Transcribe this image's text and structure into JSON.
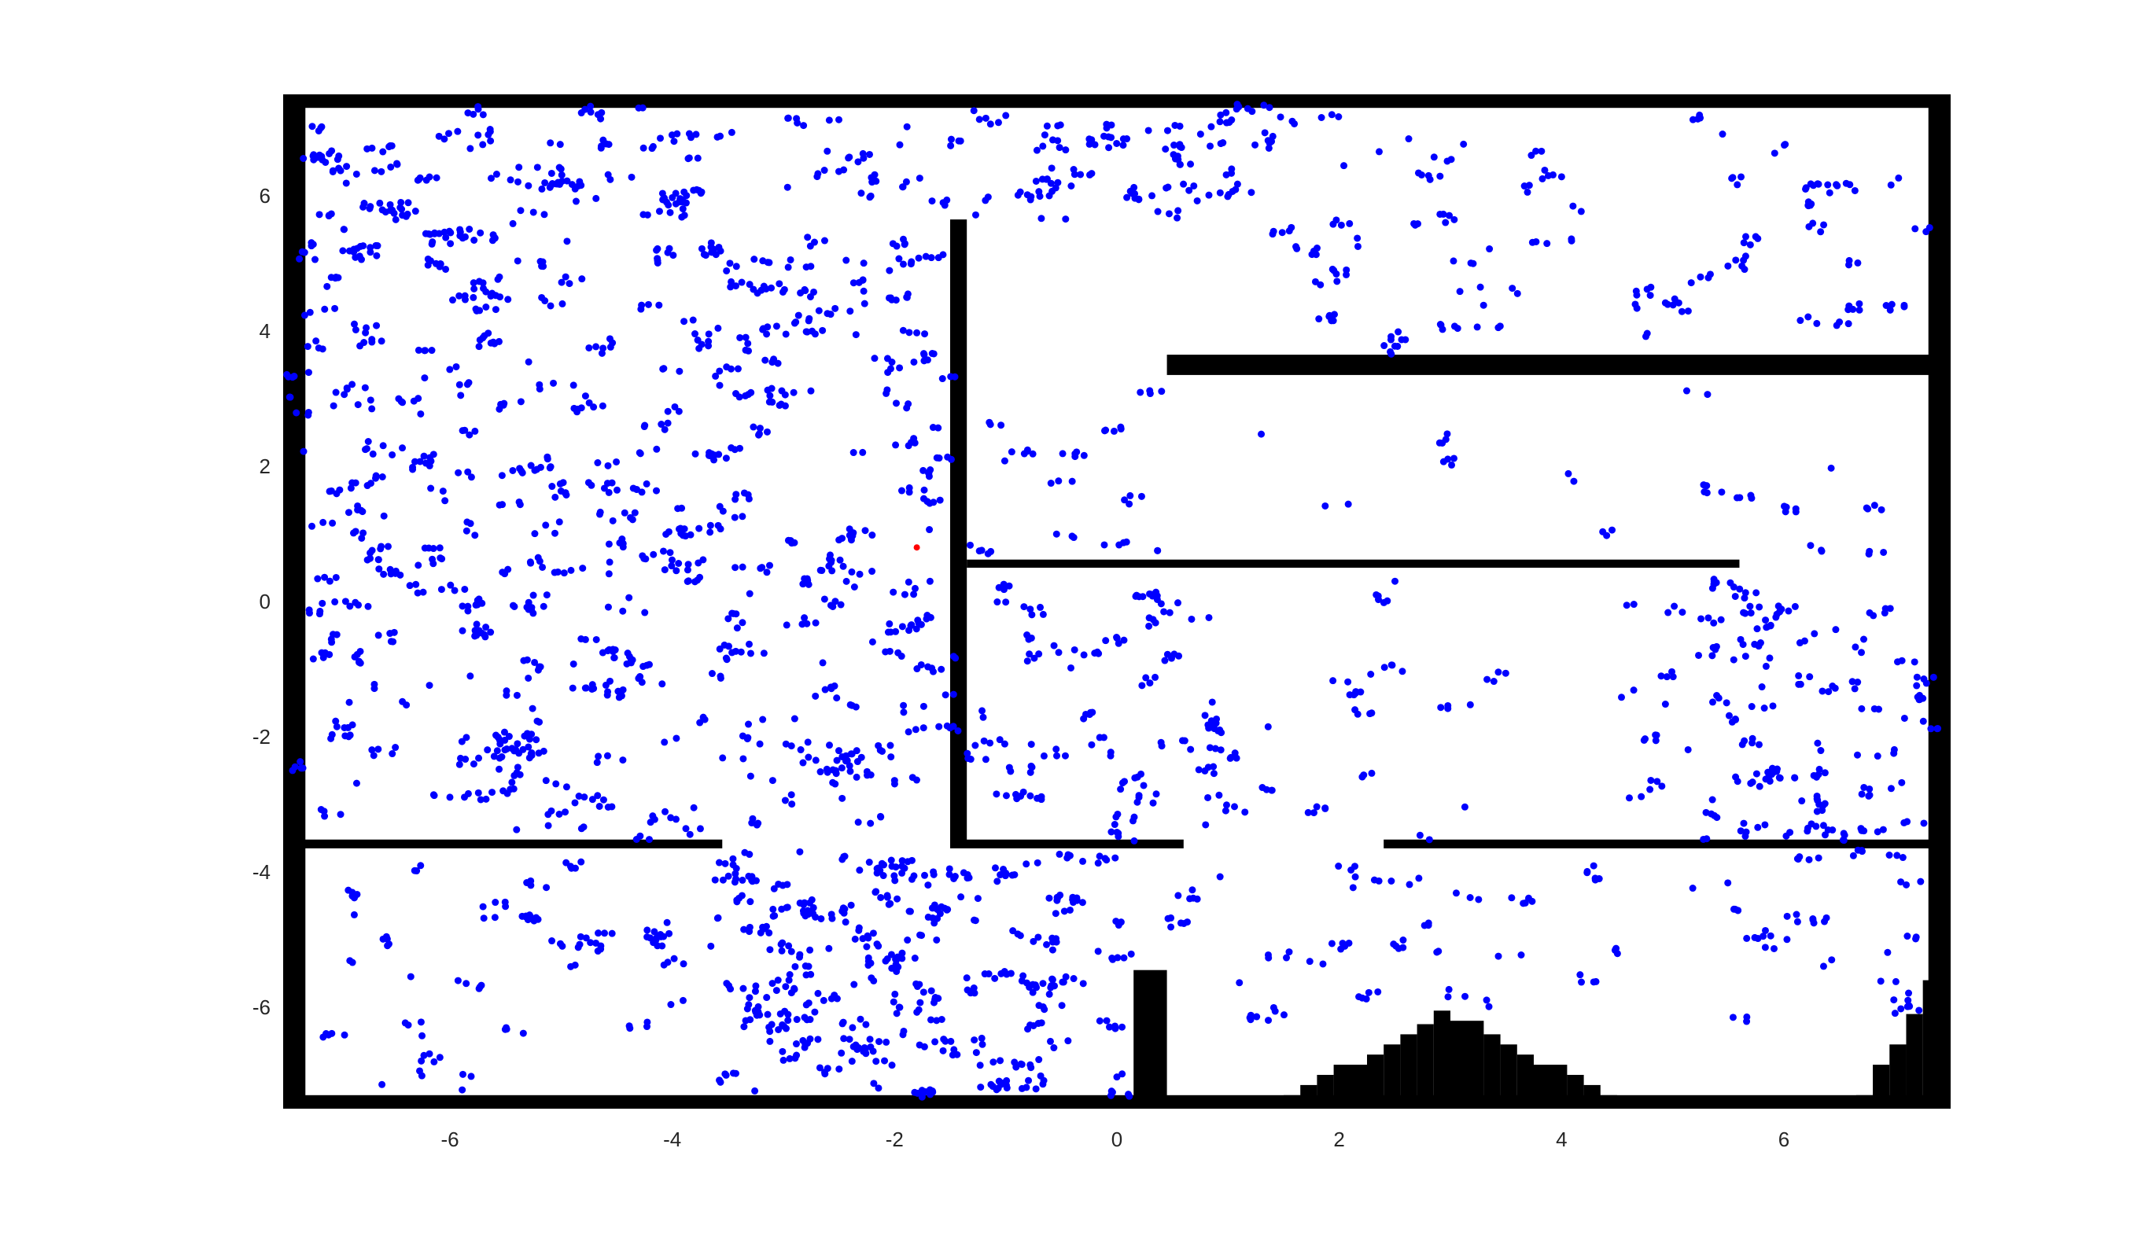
{
  "chart_data": {
    "type": "scatter",
    "title": "",
    "xlabel": "",
    "ylabel": "",
    "xlim": [
      -7.5,
      7.5
    ],
    "ylim": [
      -7.5,
      7.5
    ],
    "grid": false,
    "legend": "none",
    "x_ticks": [
      -6,
      -4,
      -2,
      0,
      2,
      4,
      6
    ],
    "y_ticks": [
      6,
      4,
      2,
      0,
      -2,
      -4,
      -6
    ],
    "colors": {
      "particles": "#0000ff",
      "robot_estimate": "#ff0000",
      "walls": "#000000"
    },
    "robot_estimate": {
      "x": -1.8,
      "y": 0.8
    },
    "walls": [
      {
        "x0": -7.5,
        "y0": 7.3,
        "x1": 7.5,
        "y1": 7.5
      },
      {
        "x0": -7.5,
        "y0": -7.5,
        "x1": 7.5,
        "y1": -7.3
      },
      {
        "x0": -7.5,
        "y0": -7.5,
        "x1": -7.3,
        "y1": 7.5
      },
      {
        "x0": 7.3,
        "y0": -7.5,
        "x1": 7.5,
        "y1": 7.5
      },
      {
        "x0": 0.45,
        "y0": 3.35,
        "x1": 7.5,
        "y1": 3.65
      },
      {
        "x0": -1.5,
        "y0": -3.6,
        "x1": -1.35,
        "y1": 5.65
      },
      {
        "x0": -1.35,
        "y0": 0.5,
        "x1": 5.6,
        "y1": 0.62
      },
      {
        "x0": -7.5,
        "y0": -3.65,
        "x1": -3.55,
        "y1": -3.52
      },
      {
        "x0": -1.5,
        "y0": -3.65,
        "x1": 0.6,
        "y1": -3.52
      },
      {
        "x0": 2.4,
        "y0": -3.65,
        "x1": 7.5,
        "y1": -3.52
      },
      {
        "x0": 0.15,
        "y0": -7.5,
        "x1": 0.45,
        "y1": -5.45
      },
      {
        "x0": 1.5,
        "y0": -7.5,
        "x1": 1.65,
        "y1": -7.3
      },
      {
        "x0": 1.65,
        "y0": -7.5,
        "x1": 1.8,
        "y1": -7.15
      },
      {
        "x0": 1.8,
        "y0": -7.5,
        "x1": 1.95,
        "y1": -7.0
      },
      {
        "x0": 1.95,
        "y0": -7.5,
        "x1": 2.25,
        "y1": -6.85
      },
      {
        "x0": 2.25,
        "y0": -7.5,
        "x1": 2.4,
        "y1": -6.7
      },
      {
        "x0": 2.4,
        "y0": -7.5,
        "x1": 2.55,
        "y1": -6.55
      },
      {
        "x0": 2.55,
        "y0": -7.5,
        "x1": 2.7,
        "y1": -6.4
      },
      {
        "x0": 2.7,
        "y0": -7.5,
        "x1": 2.85,
        "y1": -6.25
      },
      {
        "x0": 2.85,
        "y0": -7.5,
        "x1": 3.0,
        "y1": -6.05
      },
      {
        "x0": 3.0,
        "y0": -7.5,
        "x1": 3.3,
        "y1": -6.2
      },
      {
        "x0": 3.3,
        "y0": -7.5,
        "x1": 3.45,
        "y1": -6.4
      },
      {
        "x0": 3.45,
        "y0": -7.5,
        "x1": 3.6,
        "y1": -6.55
      },
      {
        "x0": 3.6,
        "y0": -7.5,
        "x1": 3.75,
        "y1": -6.7
      },
      {
        "x0": 3.75,
        "y0": -7.5,
        "x1": 4.05,
        "y1": -6.85
      },
      {
        "x0": 4.05,
        "y0": -7.5,
        "x1": 4.2,
        "y1": -7.0
      },
      {
        "x0": 4.2,
        "y0": -7.5,
        "x1": 4.35,
        "y1": -7.15
      },
      {
        "x0": 4.35,
        "y0": -7.5,
        "x1": 4.5,
        "y1": -7.3
      },
      {
        "x0": 6.65,
        "y0": -7.5,
        "x1": 6.8,
        "y1": -7.3
      },
      {
        "x0": 6.8,
        "y0": -7.5,
        "x1": 6.95,
        "y1": -6.85
      },
      {
        "x0": 6.95,
        "y0": -7.5,
        "x1": 7.1,
        "y1": -6.55
      },
      {
        "x0": 7.1,
        "y0": -7.5,
        "x1": 7.25,
        "y1": -6.1
      },
      {
        "x0": 7.25,
        "y0": -7.5,
        "x1": 7.5,
        "y1": -5.6
      }
    ],
    "particle_density_regions": [
      {
        "x0": -7.4,
        "x1": -1.5,
        "y0": -3.5,
        "y1": 7.3,
        "count": 420
      },
      {
        "x0": -1.5,
        "x1": 1.5,
        "y0": 5.7,
        "y1": 7.3,
        "count": 50
      },
      {
        "x0": 1.5,
        "x1": 7.3,
        "y0": 3.7,
        "y1": 7.3,
        "count": 60
      },
      {
        "x0": -1.35,
        "x1": 0.45,
        "y0": 0.7,
        "y1": 3.3,
        "count": 12
      },
      {
        "x0": 0.6,
        "x1": 7.3,
        "y0": 0.7,
        "y1": 3.3,
        "count": 14
      },
      {
        "x0": -1.35,
        "x1": 1.0,
        "y0": -3.5,
        "y1": 0.5,
        "count": 50
      },
      {
        "x0": 1.0,
        "x1": 5.0,
        "y0": -3.5,
        "y1": 0.5,
        "count": 25
      },
      {
        "x0": 5.0,
        "x1": 7.3,
        "y0": -3.5,
        "y1": 0.5,
        "count": 60
      },
      {
        "x0": -7.4,
        "x1": -3.6,
        "y0": -7.3,
        "y1": -3.7,
        "count": 40
      },
      {
        "x0": -3.6,
        "x1": 0.1,
        "y0": -7.3,
        "y1": -3.7,
        "count": 150
      },
      {
        "x0": 0.5,
        "x1": 7.2,
        "y0": -6.2,
        "y1": -3.7,
        "count": 50
      }
    ]
  }
}
